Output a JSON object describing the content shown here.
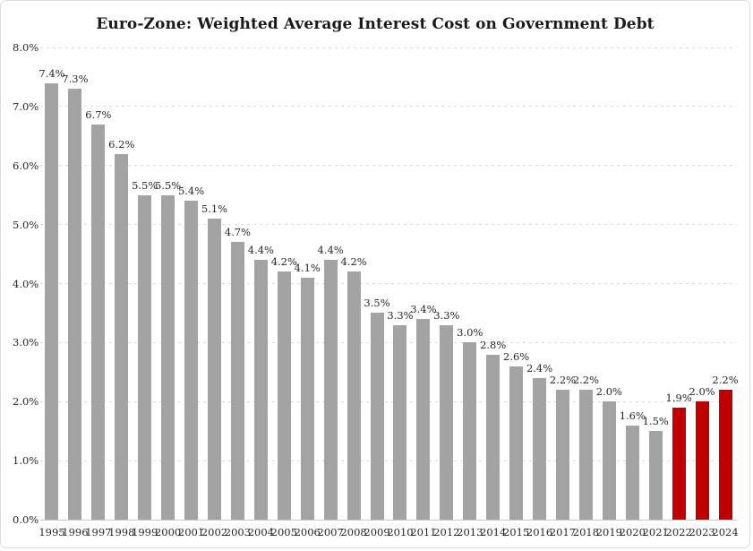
{
  "figure": {
    "title": "Euro-Zone: Weighted Average Interest Cost on Government Debt"
  },
  "colors": {
    "bar": "#a3a3a3",
    "bar_highlight": "#c00000",
    "gridline": "#d9d9d9",
    "baseline": "#c8c8c8",
    "text": "#262626",
    "border": "#dcdcdc",
    "background": "#ffffff"
  },
  "chart_data": {
    "type": "bar",
    "title": "Euro-Zone: Weighted Average Interest Cost on Government Debt",
    "xlabel": "",
    "ylabel": "",
    "ylim": [
      0,
      8
    ],
    "ytick_step": 1,
    "ytick_labels": [
      "0.0%",
      "1.0%",
      "2.0%",
      "3.0%",
      "4.0%",
      "5.0%",
      "6.0%",
      "7.0%",
      "8.0%"
    ],
    "grid": "horizontal-dashed",
    "legend": "none",
    "categories": [
      "1995",
      "1996",
      "1997",
      "1998",
      "1999",
      "2000",
      "2001",
      "2002",
      "2003",
      "2004",
      "2005",
      "2006",
      "2007",
      "2008",
      "2009",
      "2010",
      "2011",
      "2012",
      "2013",
      "2014",
      "2015",
      "2016",
      "2017",
      "2018",
      "2019",
      "2020",
      "2021",
      "2022",
      "2023",
      "2024"
    ],
    "values": [
      7.4,
      7.3,
      6.7,
      6.2,
      5.5,
      5.5,
      5.4,
      5.1,
      4.7,
      4.4,
      4.2,
      4.1,
      4.4,
      4.2,
      3.5,
      3.3,
      3.4,
      3.3,
      3.0,
      2.8,
      2.6,
      2.4,
      2.2,
      2.2,
      2.0,
      1.6,
      1.5,
      1.9,
      2.0,
      2.2
    ],
    "value_labels": [
      "7.4%",
      "7.3%",
      "6.7%",
      "6.2%",
      "5.5%",
      "5.5%",
      "5.4%",
      "5.1%",
      "4.7%",
      "4.4%",
      "4.2%",
      "4.1%",
      "4.4%",
      "4.2%",
      "3.5%",
      "3.3%",
      "3.4%",
      "3.3%",
      "3.0%",
      "2.8%",
      "2.6%",
      "2.4%",
      "2.2%",
      "2.2%",
      "2.0%",
      "1.6%",
      "1.5%",
      "1.9%",
      "2.0%",
      "2.2%"
    ],
    "highlighted_categories": [
      "2022",
      "2023",
      "2024"
    ]
  }
}
